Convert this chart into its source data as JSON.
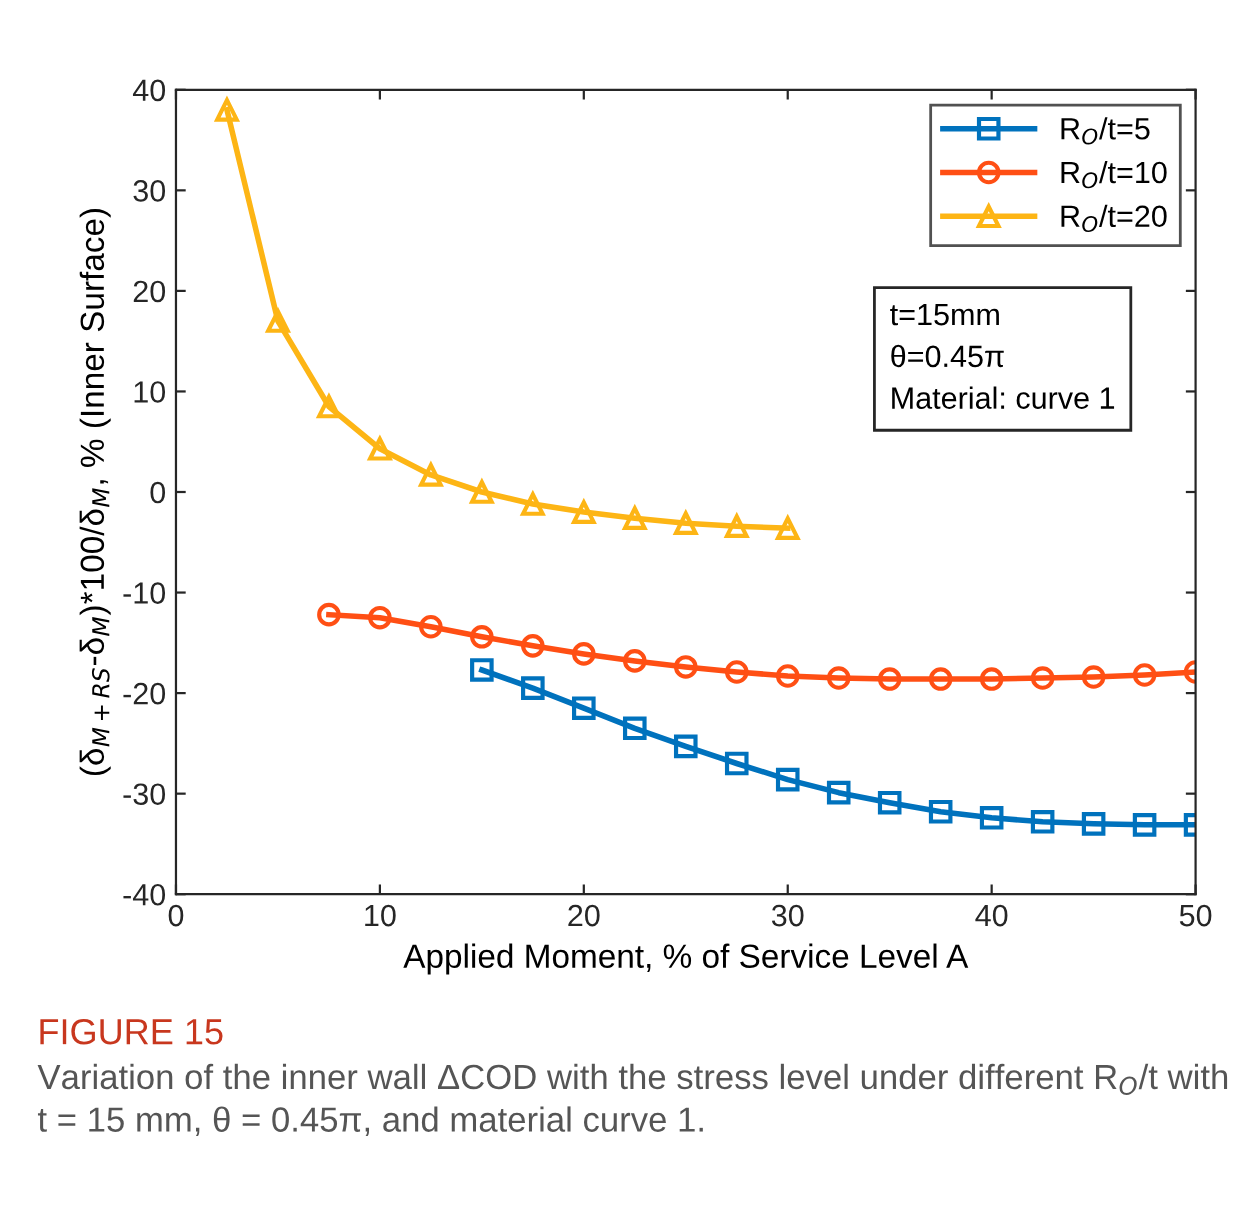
{
  "chart_data": {
    "type": "line",
    "xlabel": "Applied Moment, % of Service Level A",
    "ylabel": "(δ$_{M+RS}$-δ$_{M}$)*100/δ$_{M}$, % (Inner Surface)",
    "xlim": [
      0,
      50
    ],
    "xticks": [
      0,
      10,
      20,
      30,
      40,
      50
    ],
    "ylim": [
      -40,
      40
    ],
    "yticks": [
      -40,
      -30,
      -20,
      -10,
      0,
      10,
      20,
      30,
      40
    ],
    "grid": false,
    "legend": "top right",
    "line_style": "solid",
    "series": [
      {
        "name": "R$_{O}$/t=5",
        "color": "#0072bd",
        "marker": "square",
        "x": [
          15,
          17.5,
          20,
          22.5,
          25,
          27.5,
          30,
          32.5,
          35,
          37.5,
          40,
          42.5,
          45,
          47.5,
          50
        ],
        "values": [
          -17.7,
          -19.5,
          -21.5,
          -23.5,
          -25.3,
          -27,
          -28.6,
          -29.9,
          -30.9,
          -31.8,
          -32.4,
          -32.8,
          -33,
          -33.1,
          -33.1
        ]
      },
      {
        "name": "R$_{O}$/t=10",
        "color": "#ff4f14",
        "marker": "circle",
        "x": [
          7.5,
          10,
          12.5,
          15,
          17.5,
          20,
          22.5,
          25,
          27.5,
          30,
          32.5,
          35,
          37.5,
          40,
          42.5,
          45,
          47.5,
          50
        ],
        "values": [
          -12.2,
          -12.5,
          -13.4,
          -14.4,
          -15.3,
          -16.1,
          -16.8,
          -17.4,
          -17.9,
          -18.3,
          -18.5,
          -18.6,
          -18.6,
          -18.6,
          -18.5,
          -18.4,
          -18.2,
          -17.9
        ]
      },
      {
        "name": "R$_{O}$/t=20",
        "color": "#fdb515",
        "marker": "triangle",
        "x": [
          2.5,
          5,
          7.5,
          10,
          12.5,
          15,
          17.5,
          20,
          22.5,
          25,
          27.5,
          30
        ],
        "values": [
          38,
          17,
          8.5,
          4.3,
          1.7,
          0,
          -1.2,
          -2,
          -2.6,
          -3.1,
          -3.4,
          -3.6
        ]
      }
    ],
    "annotations": [
      "t=15mm\nθ=0.45π\nMaterial: curve 1",
      "FIGURE 15",
      "Variation of the inner wall ΔCOD with the stress level under different R$_{O}$/t with t = 15 mm, θ = 0.45π, and material curve 1."
    ]
  }
}
